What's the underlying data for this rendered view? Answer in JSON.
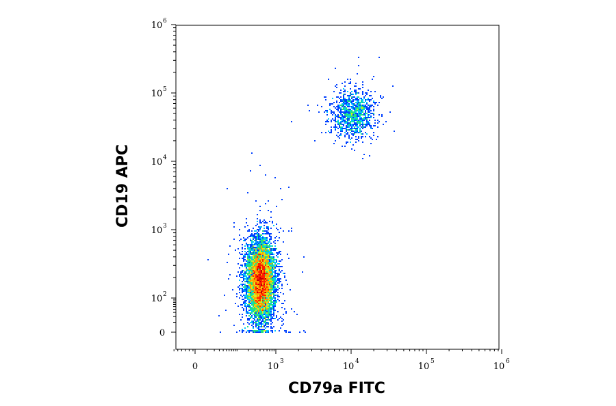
{
  "chart_data": {
    "type": "scatter",
    "title": "",
    "xlabel": "CD79a FITC",
    "ylabel": "CD19 APC",
    "x_scale": "biexponential",
    "y_scale": "biexponential",
    "xlim": [
      -100,
      1000000
    ],
    "ylim": [
      0,
      1000000
    ],
    "x_ticks": [
      {
        "label": "0",
        "value": 0
      },
      {
        "label": "10",
        "exp": "3",
        "value": 1000
      },
      {
        "label": "10",
        "exp": "4",
        "value": 10000
      },
      {
        "label": "10",
        "exp": "5",
        "value": 100000
      },
      {
        "label": "10",
        "exp": "6",
        "value": 1000000
      }
    ],
    "y_ticks": [
      {
        "label": "0",
        "value": 0
      },
      {
        "label": "10",
        "exp": "2",
        "value": 100
      },
      {
        "label": "10",
        "exp": "3",
        "value": 1000
      },
      {
        "label": "10",
        "exp": "4",
        "value": 10000
      },
      {
        "label": "10",
        "exp": "5",
        "value": 100000
      },
      {
        "label": "10",
        "exp": "6",
        "value": 1000000
      }
    ],
    "populations": [
      {
        "x_center": 420,
        "y_center": 180,
        "x_range": [
          150,
          1500
        ],
        "y_range": [
          0,
          5000
        ],
        "approx_events": 7000
      },
      {
        "x_center": 10500,
        "y_center": 50000,
        "x_range": [
          3500,
          32000
        ],
        "y_range": [
          10000,
          220000
        ],
        "approx_events": 1100
      }
    ],
    "density_colors": [
      "#00009a",
      "#0040ff",
      "#00c8ff",
      "#20e080",
      "#d0f020",
      "#ffa000",
      "#ff2000",
      "#c00000"
    ],
    "grid": false,
    "legend": "none"
  }
}
